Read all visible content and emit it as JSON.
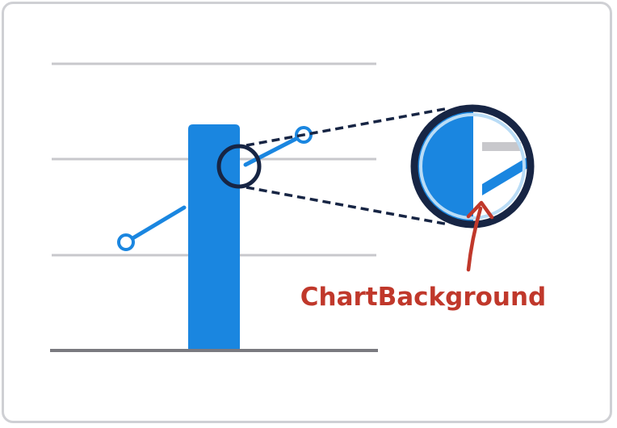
{
  "colors": {
    "frame_border": "#cfd0d4",
    "gridline": "#c8c8cc",
    "baseline": "#7a7a80",
    "bar": "#1a86e0",
    "line": "#1a86e0",
    "magnifier_ring": "#172544",
    "magnifier_inner_ring": "#b9dcf6",
    "callout": "#c0382b",
    "zoom_gray_bar": "#c8c8cc"
  },
  "callout": {
    "label": "ChartBackground",
    "icon": "curved-arrow-icon"
  },
  "magnifier": {
    "icon": "magnifier-icon"
  }
}
